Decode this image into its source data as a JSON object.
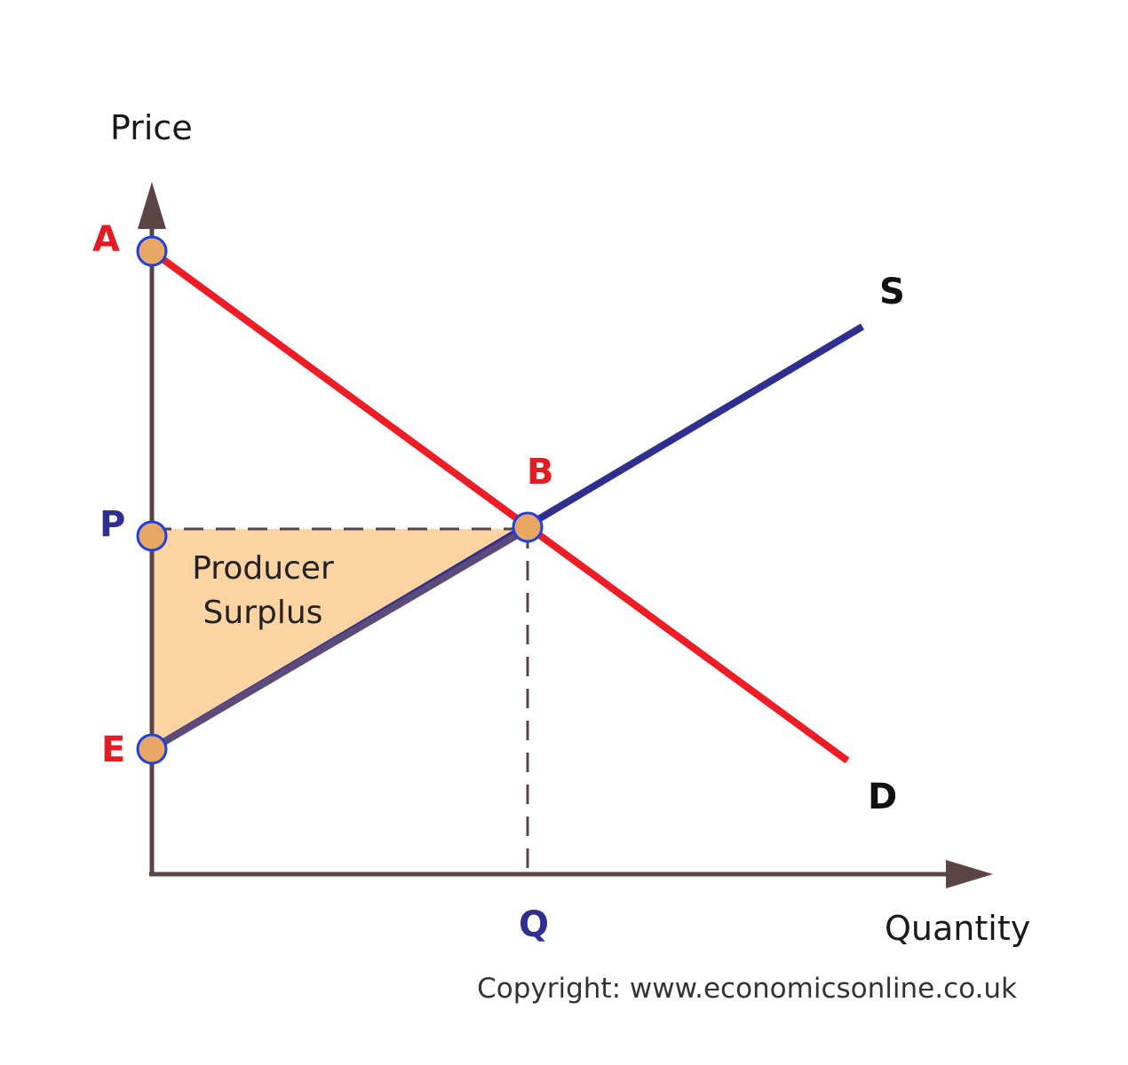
{
  "axes": {
    "y_label": "Price",
    "x_label": "Quantity",
    "color": "#5b4446"
  },
  "points": {
    "A": "A",
    "B": "B",
    "P": "P",
    "E": "E",
    "Q": "Q"
  },
  "curves": {
    "supply_label": "S",
    "demand_label": "D",
    "supply_color": "#2e2f8f",
    "demand_color": "#ee1c25"
  },
  "region": {
    "line1": "Producer",
    "line2": "Surplus",
    "fill_color": "#fcd3a1"
  },
  "colors": {
    "label_red": "#e31b23",
    "label_blue": "#2e2f8f",
    "point_fill": "#e8a864",
    "point_stroke": "#1f3fe0",
    "guide": "#5b4446"
  },
  "copyright": "Copyright: www.economicsonline.co.uk"
}
